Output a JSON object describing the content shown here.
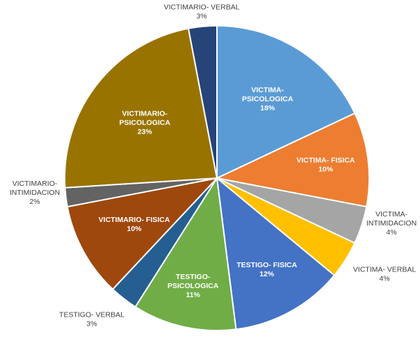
{
  "chart_data": {
    "type": "pie",
    "title": "",
    "slices": [
      {
        "name": "VICTIMA-PSICOLOGICA",
        "label_lines": [
          "VICTIMA-",
          "PSICOLOGICA",
          "18%"
        ],
        "value": 18,
        "color": "#5B9BD5",
        "label_position": "inside"
      },
      {
        "name": "VICTIMA- FISICA",
        "label_lines": [
          "VICTIMA- FISICA",
          "10%"
        ],
        "value": 10,
        "color": "#ED7D31",
        "label_position": "inside"
      },
      {
        "name": "VICTIMA-INTIMIDACION",
        "label_lines": [
          "VICTIMA-",
          "INTIMIDACION",
          "4%"
        ],
        "value": 4,
        "color": "#A5A5A5",
        "label_position": "outside"
      },
      {
        "name": "VICTIMA- VERBAL",
        "label_lines": [
          "VICTIMA- VERBAL",
          "4%"
        ],
        "value": 4,
        "color": "#FFC000",
        "label_position": "outside"
      },
      {
        "name": "TESTIGO- FISICA",
        "label_lines": [
          "TESTIGO- FISICA",
          "12%"
        ],
        "value": 12,
        "color": "#4472C4",
        "label_position": "inside"
      },
      {
        "name": "TESTIGO-PSICOLOGICA",
        "label_lines": [
          "TESTIGO-",
          "PSICOLOGICA",
          "11%"
        ],
        "value": 11,
        "color": "#70AD47",
        "label_position": "inside"
      },
      {
        "name": "TESTIGO- VERBAL",
        "label_lines": [
          "TESTIGO- VERBAL",
          "3%"
        ],
        "value": 3,
        "color": "#255E91",
        "label_position": "outside"
      },
      {
        "name": "VICTIMARIO- FISICA",
        "label_lines": [
          "VICTIMARIO- FISICA",
          "10%"
        ],
        "value": 10,
        "color": "#9E480E",
        "label_position": "inside"
      },
      {
        "name": "VICTIMARIO-INTIMIDACION",
        "label_lines": [
          "VICTIMARIO-",
          "INTIMIDACION",
          "2%"
        ],
        "value": 2,
        "color": "#636363",
        "label_position": "outside"
      },
      {
        "name": "VICTIMARIO-PSICOLOGICA",
        "label_lines": [
          "VICTIMARIO-",
          "PSICOLOGICA",
          "23%"
        ],
        "value": 23,
        "color": "#997300",
        "label_position": "inside"
      },
      {
        "name": "VICTIMARIO- VERBAL",
        "label_lines": [
          "VICTIMARIO- VERBAL",
          "3%"
        ],
        "value": 3,
        "color": "#264478",
        "label_position": "outside"
      }
    ]
  }
}
